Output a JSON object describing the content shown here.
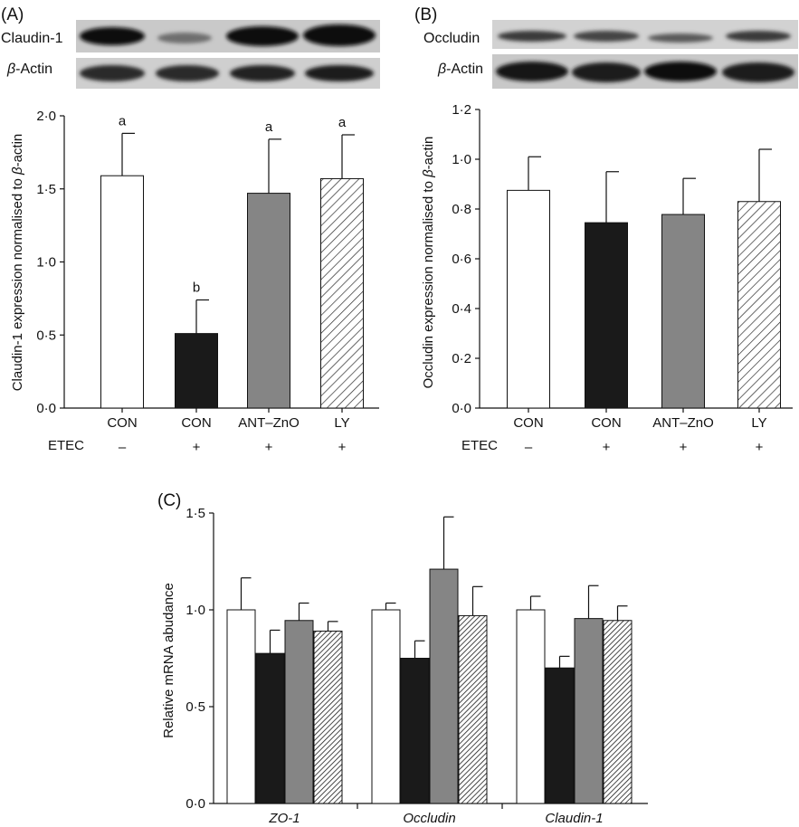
{
  "panels": {
    "A": {
      "label": "(A)",
      "blot": {
        "target_label": "Claudin-1",
        "control_label_prefix": "β",
        "control_label_suffix": "-Actin"
      },
      "ylabel_main": "Claudin-1 expression normalised to ",
      "ylabel_beta": "β",
      "ylabel_tail": "-actin",
      "treatment_row_label": "ETEC"
    },
    "B": {
      "label": "(B)",
      "blot": {
        "target_label": "Occludin",
        "control_label_prefix": "β",
        "control_label_suffix": "-Actin"
      },
      "ylabel_main": "Occludin expression normalised to ",
      "ylabel_beta": "β",
      "ylabel_tail": "-actin",
      "treatment_row_label": "ETEC"
    },
    "C": {
      "label": "(C)",
      "ylabel": "Relative mRNA abudance"
    }
  },
  "colors": {
    "white": "#ffffff",
    "black": "#1a1a1a",
    "grey": "#858585",
    "hatch": "#2a2a2a"
  },
  "chart_data": [
    {
      "id": "A",
      "type": "bar",
      "categories": [
        "CON",
        "CON",
        "ANT–ZnO",
        "LY"
      ],
      "etec": [
        "–",
        "+",
        "+",
        "+"
      ],
      "fills": [
        "white",
        "black",
        "grey",
        "hatch"
      ],
      "values": [
        1.59,
        0.51,
        1.47,
        1.57
      ],
      "errors": [
        0.29,
        0.23,
        0.37,
        0.3
      ],
      "letters": [
        "a",
        "b",
        "a",
        "a"
      ],
      "ylim": [
        0,
        2.0
      ],
      "yticks": [
        "0·0",
        "0·5",
        "1·0",
        "1·5",
        "2·0"
      ]
    },
    {
      "id": "B",
      "type": "bar",
      "categories": [
        "CON",
        "CON",
        "ANT–ZnO",
        "LY"
      ],
      "etec": [
        "–",
        "+",
        "+",
        "+"
      ],
      "fills": [
        "white",
        "black",
        "grey",
        "hatch"
      ],
      "values": [
        0.875,
        0.745,
        0.778,
        0.83
      ],
      "errors": [
        0.135,
        0.205,
        0.145,
        0.21
      ],
      "ylim": [
        0,
        1.2
      ],
      "yticks": [
        "0·0",
        "0·2",
        "0·4",
        "0·6",
        "0·8",
        "1·0",
        "1·2"
      ]
    },
    {
      "id": "C",
      "type": "bar",
      "categories": [
        "ZO-1",
        "Occludin",
        "Claudin-1"
      ],
      "fills": [
        "white",
        "black",
        "grey",
        "hatch"
      ],
      "series": [
        {
          "values": [
            1.0,
            1.0,
            1.0
          ],
          "errors": [
            0.165,
            0.035,
            0.07
          ]
        },
        {
          "values": [
            0.775,
            0.75,
            0.7
          ],
          "errors": [
            0.12,
            0.09,
            0.06
          ]
        },
        {
          "values": [
            0.945,
            1.21,
            0.955
          ],
          "errors": [
            0.09,
            0.27,
            0.17
          ]
        },
        {
          "values": [
            0.89,
            0.97,
            0.945
          ],
          "errors": [
            0.05,
            0.15,
            0.075
          ]
        }
      ],
      "ylim": [
        0,
        1.5
      ],
      "yticks": [
        "0·0",
        "0·5",
        "1·0",
        "1·5"
      ]
    }
  ]
}
